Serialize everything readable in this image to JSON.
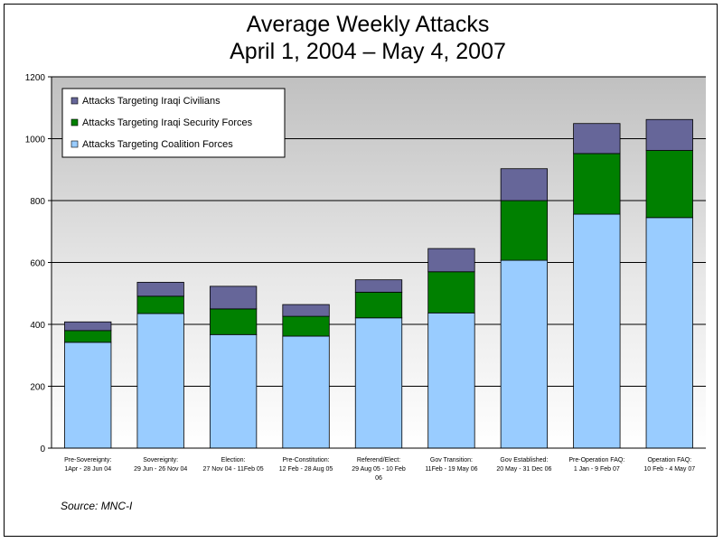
{
  "chart_data": {
    "type": "bar",
    "stacked": true,
    "title_lines": [
      "Average Weekly Attacks",
      "April 1, 2004 – May 4, 2007"
    ],
    "ylim": [
      0,
      1200
    ],
    "yticks": [
      0,
      200,
      400,
      600,
      800,
      1000,
      1200
    ],
    "grid": true,
    "legend_position": "top-left",
    "categories": [
      [
        "Pre-Sovereignty:",
        "1Apr - 28 Jun 04"
      ],
      [
        "Sovereignty:",
        "29 Jun - 26 Nov 04"
      ],
      [
        "Election:",
        "27 Nov 04 - 11Feb 05"
      ],
      [
        "Pre-Constitution:",
        "12 Feb - 28 Aug 05"
      ],
      [
        "Referend/Elect:",
        "29 Aug 05 - 10 Feb",
        "06"
      ],
      [
        "Gov Transition:",
        "11Feb - 19 May 06"
      ],
      [
        "Gov Established:",
        "20 May - 31 Dec 06"
      ],
      [
        "Pre-Operation FAQ:",
        "1 Jan - 9 Feb 07"
      ],
      [
        "Operation FAQ:",
        "10 Feb - 4 May 07"
      ]
    ],
    "series": [
      {
        "name": "Attacks Targeting Coalition Forces",
        "color": "#99ccff",
        "values": [
          342,
          435,
          367,
          362,
          421,
          437,
          607,
          756,
          745
        ]
      },
      {
        "name": "Attacks Targeting Iraqi Security Forces",
        "color": "#008000",
        "values": [
          38,
          56,
          83,
          64,
          83,
          133,
          193,
          196,
          217
        ]
      },
      {
        "name": "Attacks Targeting Iraqi Civilians",
        "color": "#666699",
        "values": [
          28,
          45,
          73,
          38,
          40,
          75,
          103,
          97,
          100
        ]
      }
    ],
    "legend_order": [
      2,
      1,
      0
    ]
  },
  "source": "Source: MNC-I",
  "colors": {
    "plot_background_top": "#c0c0c0",
    "plot_background_bottom": "#ffffff",
    "gridline": "#000000"
  }
}
